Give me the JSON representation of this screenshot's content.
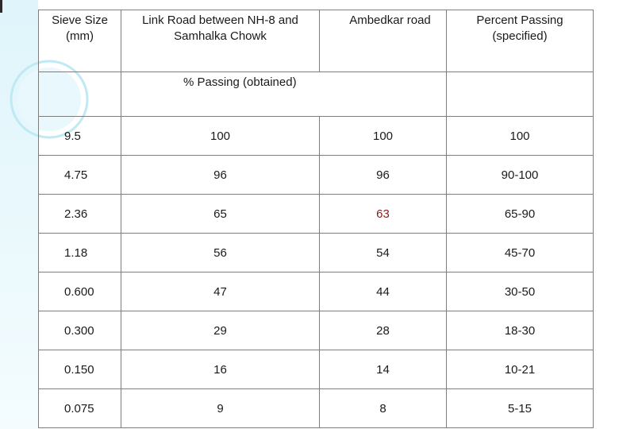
{
  "table": {
    "headers": {
      "sieve": "Sieve Size (mm)",
      "link_road": "Link Road between NH-8 and Samhalka Chowk",
      "ambedkar": "Ambedkar road",
      "specified": "Percent Passing (specified)"
    },
    "subheader": "% Passing (obtained)",
    "rows": [
      {
        "sieve": "9.5",
        "link": "100",
        "ambedkar": "100",
        "spec": "100"
      },
      {
        "sieve": "4.75",
        "link": "96",
        "ambedkar": "96",
        "spec": "90-100"
      },
      {
        "sieve": "2.36",
        "link": "65",
        "ambedkar": "63",
        "spec": "65-90"
      },
      {
        "sieve": "1.18",
        "link": "56",
        "ambedkar": "54",
        "spec": "45-70"
      },
      {
        "sieve": "0.600",
        "link": "47",
        "ambedkar": "44",
        "spec": "30-50"
      },
      {
        "sieve": "0.300",
        "link": "29",
        "ambedkar": "28",
        "spec": "18-30"
      },
      {
        "sieve": "0.150",
        "link": "16",
        "ambedkar": "14",
        "spec": "10-21"
      },
      {
        "sieve": "0.075",
        "link": "9",
        "ambedkar": "8",
        "spec": "5-15"
      }
    ]
  },
  "colors": {
    "accent_light": "#cfeff7",
    "accent_ring": "#bfe9f3",
    "border": "#7d7d7d",
    "highlight": "#8b1a1a"
  }
}
